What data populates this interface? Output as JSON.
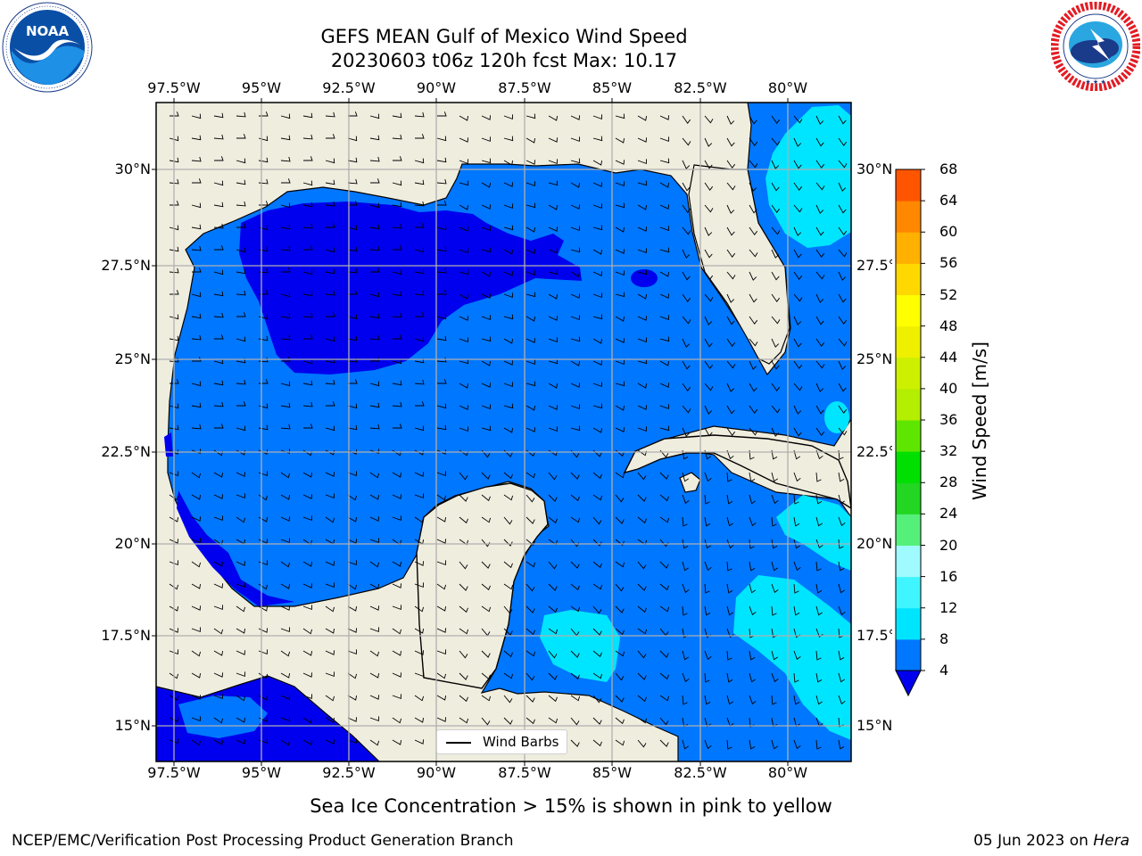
{
  "header": {
    "title_line1": "GEFS MEAN Gulf of Mexico Wind Speed",
    "title_line2": "20230603 t06z 120h fcst   Max: 10.17"
  },
  "logos": {
    "left": {
      "name": "noaa-logo",
      "text": "NOAA",
      "ring_text": "NATIONAL OCEANIC AND ATMOSPHERIC ADMINISTRATION · U.S. DEPARTMENT OF COMMERCE"
    },
    "right": {
      "name": "national-weather-service-logo",
      "ring_text": "NATIONAL WEATHER SERVICE"
    }
  },
  "map": {
    "lon_ticks": [
      "97.5°W",
      "95°W",
      "92.5°W",
      "90°W",
      "87.5°W",
      "85°W",
      "82.5°W",
      "80°W"
    ],
    "lat_ticks": [
      "30°N",
      "27.5°N",
      "25°N",
      "22.5°N",
      "20°N",
      "17.5°N",
      "15°N"
    ],
    "lat_ticks_right": [
      "30°N",
      "27.5°N",
      "25°N",
      "22.5°N",
      "20°N",
      "17.5°N",
      "15°N"
    ],
    "lon_range": [
      -98,
      -78.2
    ],
    "lat_range": [
      14,
      31.8
    ],
    "legend_label": "Wind Barbs",
    "land_color": "#efedde",
    "grid": true
  },
  "colorbar": {
    "title": "Wind Speed [m/s]",
    "ticks": [
      "4",
      "8",
      "12",
      "16",
      "20",
      "24",
      "28",
      "32",
      "36",
      "40",
      "44",
      "48",
      "52",
      "56",
      "60",
      "64",
      "68"
    ],
    "colors": [
      "#0077ff",
      "#00e5ff",
      "#3ff5ff",
      "#9ffbff",
      "#55f07a",
      "#22d622",
      "#00e000",
      "#5ee600",
      "#b4ee00",
      "#ccf000",
      "#eef000",
      "#ffff00",
      "#ffd800",
      "#ffb000",
      "#ff8800",
      "#ff5500",
      "#ff2a00",
      "#ff0000"
    ],
    "under_color": "#0000ee"
  },
  "caption": "Sea Ice Concentration > 15% is shown in pink to yellow",
  "footer": {
    "left": "NCEP/EMC/Verification Post Processing Product Generation Branch",
    "right_date": "05 Jun 2023 on",
    "right_host": "Hera"
  }
}
